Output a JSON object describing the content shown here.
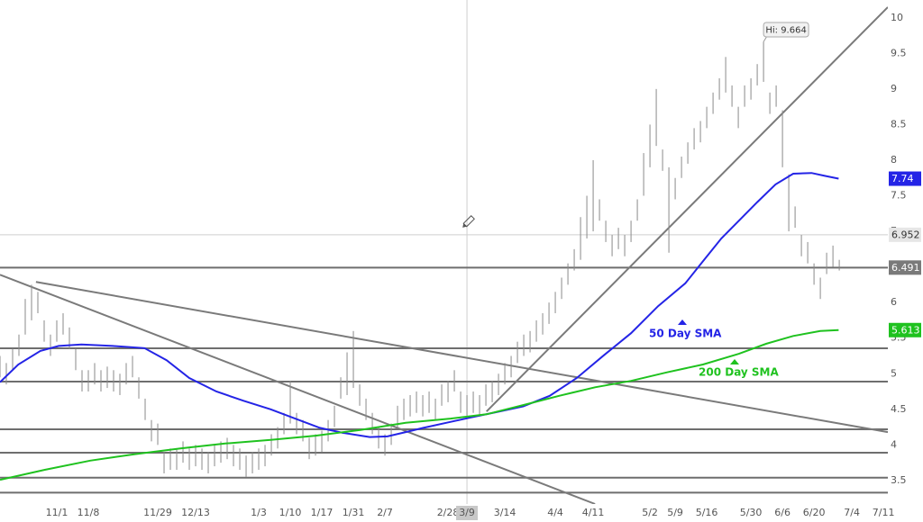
{
  "chart_data": {
    "type": "ohlc",
    "xlim": [
      0,
      140.7
    ],
    "ylim": [
      3.17,
      10.25
    ],
    "xticks": [
      {
        "value": 9,
        "label": "11/1"
      },
      {
        "value": 14,
        "label": "11/8"
      },
      {
        "value": 25,
        "label": "11/29"
      },
      {
        "value": 31,
        "label": "12/13"
      },
      {
        "value": 41,
        "label": "1/3"
      },
      {
        "value": 46,
        "label": "1/10"
      },
      {
        "value": 51,
        "label": "1/17"
      },
      {
        "value": 56,
        "label": "1/31"
      },
      {
        "value": 61,
        "label": "2/7"
      },
      {
        "value": 71,
        "label": "2/28"
      },
      {
        "value": 74,
        "label": "3/9"
      },
      {
        "value": 80,
        "label": "3/14"
      },
      {
        "value": 88,
        "label": "4/4"
      },
      {
        "value": 94,
        "label": "4/11"
      },
      {
        "value": 103,
        "label": "5/2"
      },
      {
        "value": 107,
        "label": "5/9"
      },
      {
        "value": 112,
        "label": "5/16"
      },
      {
        "value": 119,
        "label": "5/30"
      },
      {
        "value": 124,
        "label": "6/6"
      },
      {
        "value": 129,
        "label": "6/20"
      },
      {
        "value": 135,
        "label": "7/4"
      },
      {
        "value": 140,
        "label": "7/11"
      }
    ],
    "yticks": [
      3.5,
      4,
      4.5,
      5,
      5.5,
      6,
      6.5,
      7,
      7.5,
      8,
      8.5,
      9,
      9.5,
      10
    ],
    "bar_color": "#8a8a8a",
    "bars": {
      "x": [
        0,
        1,
        2,
        3,
        4,
        5,
        6,
        7,
        8,
        9,
        10,
        11,
        12,
        13,
        14,
        15,
        16,
        17,
        18,
        19,
        20,
        21,
        22,
        23,
        24,
        25,
        26,
        27,
        28,
        29,
        30,
        31,
        32,
        33,
        34,
        35,
        36,
        37,
        38,
        39,
        40,
        41,
        42,
        43,
        44,
        45,
        46,
        47,
        48,
        49,
        50,
        51,
        52,
        53,
        54,
        55,
        56,
        57,
        58,
        59,
        60,
        61,
        62,
        63,
        64,
        65,
        66,
        67,
        68,
        69,
        70,
        71,
        72,
        73,
        74,
        75,
        76,
        77,
        78,
        79,
        80,
        81,
        82,
        83,
        84,
        85,
        86,
        87,
        88,
        89,
        90,
        91,
        92,
        93,
        94,
        95,
        96,
        97,
        98,
        99,
        100,
        101,
        102,
        103,
        104,
        105,
        106,
        107,
        108,
        109,
        110,
        111,
        112,
        113,
        114,
        115,
        116,
        117,
        118,
        119,
        120,
        121,
        122,
        123,
        124,
        125,
        126,
        127,
        128,
        129,
        130,
        131,
        132,
        133
      ],
      "high": [
        5.25,
        5.15,
        5.35,
        5.55,
        6.05,
        6.25,
        6.15,
        5.75,
        5.55,
        5.75,
        5.85,
        5.65,
        5.35,
        5.05,
        5.05,
        5.15,
        5.05,
        5.1,
        5.05,
        5.0,
        5.15,
        5.25,
        4.95,
        4.65,
        4.35,
        4.3,
        3.9,
        3.95,
        3.95,
        4.05,
        3.95,
        4.0,
        3.95,
        3.9,
        4.0,
        4.05,
        4.1,
        4.0,
        3.95,
        3.85,
        3.9,
        3.95,
        4.0,
        4.15,
        4.25,
        4.45,
        4.9,
        4.45,
        4.35,
        4.1,
        4.15,
        4.2,
        4.35,
        4.55,
        4.95,
        5.3,
        5.6,
        4.85,
        4.65,
        4.45,
        4.25,
        4.15,
        4.3,
        4.55,
        4.65,
        4.7,
        4.75,
        4.7,
        4.75,
        4.65,
        4.85,
        4.9,
        5.05,
        4.75,
        4.7,
        4.75,
        4.7,
        4.85,
        4.9,
        5.0,
        5.15,
        5.25,
        5.45,
        5.55,
        5.6,
        5.75,
        5.85,
        6.0,
        6.15,
        6.35,
        6.55,
        6.75,
        7.2,
        7.5,
        8.0,
        7.45,
        7.15,
        6.95,
        7.05,
        6.95,
        7.15,
        7.45,
        8.1,
        8.5,
        9.0,
        8.15,
        7.9,
        7.75,
        8.05,
        8.25,
        8.45,
        8.55,
        8.75,
        8.95,
        9.15,
        9.45,
        9.05,
        8.75,
        9.05,
        9.15,
        9.35,
        9.664,
        8.95,
        9.05,
        8.7,
        7.8,
        7.35,
        6.95,
        6.85,
        6.55,
        6.35,
        6.7,
        6.8,
        6.6
      ],
      "low": [
        4.95,
        4.85,
        5.05,
        5.25,
        5.55,
        5.75,
        5.85,
        5.45,
        5.25,
        5.45,
        5.55,
        5.35,
        5.05,
        4.75,
        4.75,
        4.85,
        4.75,
        4.8,
        4.75,
        4.7,
        4.85,
        4.95,
        4.65,
        4.35,
        4.05,
        4.0,
        3.6,
        3.65,
        3.65,
        3.75,
        3.65,
        3.7,
        3.65,
        3.6,
        3.7,
        3.75,
        3.8,
        3.7,
        3.65,
        3.55,
        3.6,
        3.65,
        3.7,
        3.85,
        3.95,
        4.15,
        4.3,
        4.15,
        4.05,
        3.8,
        3.85,
        3.9,
        4.05,
        4.25,
        4.65,
        4.7,
        4.8,
        4.55,
        4.35,
        4.15,
        3.95,
        3.85,
        4.0,
        4.25,
        4.35,
        4.4,
        4.45,
        4.4,
        4.45,
        4.35,
        4.55,
        4.6,
        4.75,
        4.45,
        4.4,
        4.45,
        4.4,
        4.55,
        4.6,
        4.7,
        4.85,
        4.95,
        5.15,
        5.25,
        5.3,
        5.45,
        5.55,
        5.7,
        5.85,
        6.05,
        6.25,
        6.45,
        6.6,
        6.9,
        7.0,
        7.15,
        6.85,
        6.65,
        6.75,
        6.65,
        6.85,
        7.15,
        7.5,
        7.9,
        8.2,
        7.85,
        6.7,
        7.45,
        7.75,
        7.95,
        8.15,
        8.25,
        8.45,
        8.65,
        8.85,
        8.95,
        8.75,
        8.45,
        8.75,
        8.85,
        9.05,
        9.1,
        8.65,
        8.75,
        7.9,
        7.0,
        7.05,
        6.65,
        6.55,
        6.25,
        6.05,
        6.4,
        6.5,
        6.45
      ]
    },
    "series": [
      {
        "name": "50 Day SMA",
        "color": "#2424e6",
        "x": [
          0,
          2.9,
          6.4,
          9.3,
          12.9,
          17.9,
          22.9,
          26.4,
          30,
          34.3,
          38.6,
          42.9,
          47.1,
          50.7,
          54.3,
          58.6,
          61.4,
          64.3,
          67.1,
          70.7,
          74.3,
          78.6,
          82.9,
          87.1,
          91.4,
          95.7,
          100,
          104.3,
          108.6,
          111.4,
          114.3,
          117.1,
          120,
          122.9,
          125.7,
          128.6,
          130.7,
          132.9
        ],
        "values": [
          4.88,
          5.13,
          5.32,
          5.39,
          5.41,
          5.39,
          5.36,
          5.19,
          4.94,
          4.75,
          4.62,
          4.5,
          4.36,
          4.24,
          4.17,
          4.11,
          4.12,
          4.18,
          4.24,
          4.31,
          4.38,
          4.46,
          4.54,
          4.69,
          4.94,
          5.26,
          5.57,
          5.95,
          6.27,
          6.58,
          6.9,
          7.15,
          7.41,
          7.66,
          7.81,
          7.82,
          7.78,
          7.74
        ]
      },
      {
        "name": "200 Day SMA",
        "color": "#1fc21f",
        "x": [
          0,
          7.1,
          14.3,
          21.4,
          28.6,
          35.7,
          42.9,
          50,
          57.1,
          64.3,
          71.4,
          77.1,
          82.9,
          88.6,
          94.3,
          100,
          105.7,
          111.4,
          117.1,
          121.4,
          125.7,
          130,
          132.9
        ],
        "values": [
          3.51,
          3.65,
          3.78,
          3.87,
          3.95,
          4.02,
          4.07,
          4.13,
          4.21,
          4.31,
          4.37,
          4.43,
          4.56,
          4.69,
          4.81,
          4.9,
          5.02,
          5.13,
          5.28,
          5.42,
          5.53,
          5.6,
          5.613
        ]
      }
    ],
    "hlines": [
      6.491,
      5.357,
      4.89,
      4.22,
      3.89,
      3.54,
      3.33
    ],
    "trendlines": [
      {
        "x": [
          0,
          94.3
        ],
        "y": [
          6.39,
          3.17
        ]
      },
      {
        "x": [
          5.7,
          140.7
        ],
        "y": [
          6.29,
          4.18
        ]
      },
      {
        "x": [
          77.1,
          140.7
        ],
        "y": [
          4.47,
          10.15
        ]
      }
    ],
    "crosshair": {
      "x": 74,
      "y": 6.952
    },
    "high_annotation": {
      "text": "Hi: 9.664",
      "x": 121,
      "y": 9.664
    }
  }
}
